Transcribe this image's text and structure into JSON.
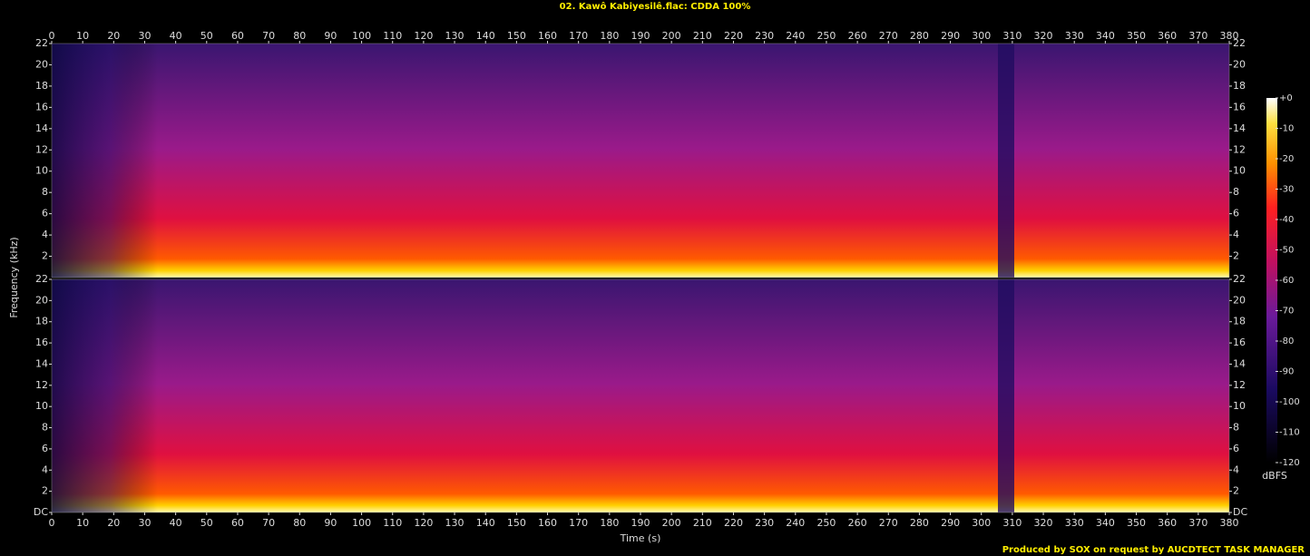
{
  "chart_data": {
    "type": "spectrogram",
    "title": "02. Kawô Kabiyesilê.flac: CDDA 100%",
    "xlabel": "Time (s)",
    "ylabel": "Frequency (kHz)",
    "xlim": [
      0,
      380
    ],
    "xticks": [
      0,
      10,
      20,
      30,
      40,
      50,
      60,
      70,
      80,
      90,
      100,
      110,
      120,
      130,
      140,
      150,
      160,
      170,
      180,
      190,
      200,
      210,
      220,
      230,
      240,
      250,
      260,
      270,
      280,
      290,
      300,
      310,
      320,
      330,
      340,
      350,
      360,
      370,
      380
    ],
    "channels": [
      {
        "ylim": [
          0,
          22
        ],
        "yticks": [
          2,
          4,
          6,
          8,
          10,
          12,
          14,
          16,
          18,
          20,
          22
        ]
      },
      {
        "ylim": [
          0,
          22
        ],
        "yticks": [
          {
            "value": 0,
            "label": "DC"
          },
          2,
          4,
          6,
          8,
          10,
          12,
          14,
          16,
          18,
          20,
          22
        ]
      }
    ],
    "colorbar": {
      "label": "dBFS",
      "lim": [
        -120,
        0
      ],
      "ticks": [
        {
          "value": 0,
          "label": "+0"
        },
        -10,
        -20,
        -30,
        -40,
        -50,
        -60,
        -70,
        -80,
        -90,
        -100,
        -110,
        -120
      ]
    },
    "footer": "Produced by SOX on request by AUCDTECT TASK MANAGER"
  }
}
